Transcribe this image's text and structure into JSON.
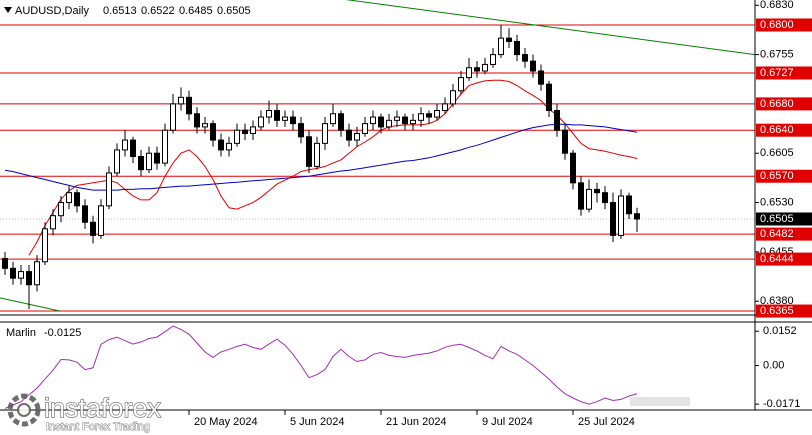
{
  "chart_data": {
    "type": "candlestick",
    "symbol": "AUDUSD,Daily",
    "ohlc": [
      [
        0.6445,
        0.6455,
        0.642,
        0.643
      ],
      [
        0.643,
        0.644,
        0.6405,
        0.6415
      ],
      [
        0.6415,
        0.6435,
        0.6405,
        0.6425
      ],
      [
        0.6425,
        0.6435,
        0.6368,
        0.6405
      ],
      [
        0.6405,
        0.645,
        0.6395,
        0.644
      ],
      [
        0.644,
        0.65,
        0.6435,
        0.649
      ],
      [
        0.649,
        0.652,
        0.648,
        0.651
      ],
      [
        0.651,
        0.654,
        0.65,
        0.653
      ],
      [
        0.653,
        0.6555,
        0.652,
        0.6545
      ],
      [
        0.6545,
        0.655,
        0.6515,
        0.6525
      ],
      [
        0.6525,
        0.6535,
        0.649,
        0.65
      ],
      [
        0.65,
        0.651,
        0.6468,
        0.648
      ],
      [
        0.648,
        0.6535,
        0.6475,
        0.6525
      ],
      [
        0.6525,
        0.6585,
        0.652,
        0.6575
      ],
      [
        0.6575,
        0.662,
        0.657,
        0.661
      ],
      [
        0.661,
        0.664,
        0.66,
        0.6625
      ],
      [
        0.6625,
        0.663,
        0.659,
        0.66
      ],
      [
        0.66,
        0.661,
        0.657,
        0.658
      ],
      [
        0.658,
        0.6615,
        0.6575,
        0.6605
      ],
      [
        0.6605,
        0.6615,
        0.658,
        0.659
      ],
      [
        0.659,
        0.665,
        0.6585,
        0.664
      ],
      [
        0.664,
        0.6695,
        0.6635,
        0.668
      ],
      [
        0.668,
        0.6705,
        0.667,
        0.669
      ],
      [
        0.669,
        0.67,
        0.6655,
        0.6665
      ],
      [
        0.6665,
        0.6675,
        0.6635,
        0.6645
      ],
      [
        0.6645,
        0.666,
        0.6635,
        0.665
      ],
      [
        0.665,
        0.6655,
        0.6615,
        0.6625
      ],
      [
        0.6625,
        0.6635,
        0.66,
        0.661
      ],
      [
        0.661,
        0.663,
        0.66,
        0.662
      ],
      [
        0.662,
        0.665,
        0.6615,
        0.664
      ],
      [
        0.664,
        0.665,
        0.6625,
        0.6635
      ],
      [
        0.6635,
        0.6655,
        0.6625,
        0.6645
      ],
      [
        0.6645,
        0.667,
        0.664,
        0.666
      ],
      [
        0.666,
        0.6685,
        0.665,
        0.667
      ],
      [
        0.667,
        0.668,
        0.6645,
        0.6655
      ],
      [
        0.6655,
        0.667,
        0.6645,
        0.666
      ],
      [
        0.666,
        0.667,
        0.664,
        0.665
      ],
      [
        0.665,
        0.666,
        0.662,
        0.663
      ],
      [
        0.663,
        0.664,
        0.6575,
        0.6585
      ],
      [
        0.6585,
        0.663,
        0.658,
        0.662
      ],
      [
        0.662,
        0.666,
        0.661,
        0.665
      ],
      [
        0.665,
        0.668,
        0.6645,
        0.6665
      ],
      [
        0.6665,
        0.667,
        0.663,
        0.664
      ],
      [
        0.664,
        0.665,
        0.6615,
        0.6625
      ],
      [
        0.6625,
        0.6645,
        0.6615,
        0.6635
      ],
      [
        0.6635,
        0.666,
        0.663,
        0.665
      ],
      [
        0.665,
        0.667,
        0.664,
        0.666
      ],
      [
        0.666,
        0.6665,
        0.6635,
        0.6645
      ],
      [
        0.6645,
        0.6665,
        0.664,
        0.6655
      ],
      [
        0.6655,
        0.667,
        0.6645,
        0.666
      ],
      [
        0.666,
        0.6665,
        0.664,
        0.665
      ],
      [
        0.665,
        0.6665,
        0.664,
        0.6655
      ],
      [
        0.6655,
        0.6675,
        0.6645,
        0.6665
      ],
      [
        0.6665,
        0.667,
        0.665,
        0.666
      ],
      [
        0.666,
        0.668,
        0.6655,
        0.667
      ],
      [
        0.667,
        0.669,
        0.6665,
        0.668
      ],
      [
        0.668,
        0.671,
        0.6675,
        0.67
      ],
      [
        0.67,
        0.673,
        0.6695,
        0.672
      ],
      [
        0.672,
        0.675,
        0.6715,
        0.6735
      ],
      [
        0.6735,
        0.6745,
        0.672,
        0.673
      ],
      [
        0.673,
        0.675,
        0.6725,
        0.674
      ],
      [
        0.674,
        0.6765,
        0.6735,
        0.6755
      ],
      [
        0.6755,
        0.68,
        0.675,
        0.678
      ],
      [
        0.678,
        0.6795,
        0.6765,
        0.6775
      ],
      [
        0.6775,
        0.6785,
        0.6745,
        0.6755
      ],
      [
        0.6755,
        0.6765,
        0.6735,
        0.6745
      ],
      [
        0.6745,
        0.6755,
        0.672,
        0.673
      ],
      [
        0.673,
        0.674,
        0.67,
        0.671
      ],
      [
        0.671,
        0.6715,
        0.666,
        0.667
      ],
      [
        0.667,
        0.668,
        0.663,
        0.664
      ],
      [
        0.664,
        0.665,
        0.6595,
        0.6605
      ],
      [
        0.6605,
        0.661,
        0.655,
        0.656
      ],
      [
        0.656,
        0.657,
        0.651,
        0.652
      ],
      [
        0.652,
        0.6565,
        0.6515,
        0.655
      ],
      [
        0.655,
        0.656,
        0.653,
        0.6545
      ],
      [
        0.6545,
        0.6555,
        0.652,
        0.653
      ],
      [
        0.653,
        0.6545,
        0.647,
        0.648
      ],
      [
        0.648,
        0.655,
        0.6475,
        0.654
      ],
      [
        0.654,
        0.6545,
        0.6505,
        0.6513
      ],
      [
        0.6513,
        0.6522,
        0.6485,
        0.6505
      ]
    ],
    "xlim": [
      -0.625,
      93.75
    ],
    "ylim": [
      0.6359,
      0.6838
    ],
    "yticks": [
      {
        "value": 0.683,
        "label": "0.6830"
      },
      0.6755,
      0.6605,
      {
        "value": 0.653,
        "label": "0.6530"
      },
      0.6455,
      {
        "value": 0.638,
        "label": "0.6380"
      }
    ],
    "xticks": [
      {
        "value": 23,
        "label": "20 May 2024"
      },
      {
        "value": 35,
        "label": "5 Jun 2024"
      },
      {
        "value": 47,
        "label": "21 Jun 2024"
      },
      {
        "value": 59,
        "label": "9 Jul 2024"
      },
      {
        "value": 71,
        "label": "25 Jul 2024"
      }
    ],
    "levels": {
      "color": "#e00000",
      "values": [
        {
          "value": 0.68,
          "label": "0.6800"
        },
        0.6727,
        {
          "value": 0.668,
          "label": "0.6680"
        },
        {
          "value": 0.664,
          "label": "0.6640"
        },
        {
          "value": 0.657,
          "label": "0.6570"
        },
        0.6482,
        0.6444,
        0.6365
      ]
    },
    "moving_averages": [
      {
        "color": "#e00000",
        "values": [
          null,
          null,
          null,
          0.645,
          0.647,
          0.6495,
          0.6515,
          0.6535,
          0.6548,
          0.6556,
          0.6558,
          0.656,
          0.6562,
          0.6564,
          0.656,
          0.655,
          0.654,
          0.6534,
          0.6534,
          0.6545,
          0.657,
          0.659,
          0.6605,
          0.661,
          0.66,
          0.6585,
          0.6565,
          0.654,
          0.6522,
          0.652,
          0.6525,
          0.653,
          0.6538,
          0.6548,
          0.6558,
          0.6564,
          0.657,
          0.6577,
          0.658,
          0.6582,
          0.6585,
          0.659,
          0.6595,
          0.6605,
          0.6615,
          0.6622,
          0.663,
          0.664,
          0.6645,
          0.6647,
          0.6648,
          0.6648,
          0.6648,
          0.665,
          0.6655,
          0.6665,
          0.668,
          0.6695,
          0.6708,
          0.6712,
          0.6715,
          0.6716,
          0.6716,
          0.6714,
          0.6708,
          0.67,
          0.6693,
          0.6685,
          0.6672,
          0.6663,
          0.665,
          0.6635,
          0.662,
          0.6612,
          0.661,
          0.6608,
          0.6605,
          0.6602,
          0.66,
          0.6597
        ]
      },
      {
        "color": "#0000c8",
        "values": [
          0.6579,
          0.6577,
          0.6574,
          0.6571,
          0.6568,
          0.6565,
          0.6562,
          0.6559,
          0.6556,
          0.6553,
          0.6551,
          0.6549,
          0.6549,
          0.6549,
          0.6549,
          0.655,
          0.655,
          0.6551,
          0.6551,
          0.6552,
          0.6553,
          0.6554,
          0.6555,
          0.6555,
          0.6556,
          0.6557,
          0.6558,
          0.6559,
          0.656,
          0.6561,
          0.6562,
          0.6563,
          0.6564,
          0.6565,
          0.6566,
          0.6567,
          0.6568,
          0.6569,
          0.657,
          0.6572,
          0.6574,
          0.6576,
          0.6578,
          0.6579,
          0.6581,
          0.6583,
          0.6585,
          0.6587,
          0.6589,
          0.6591,
          0.6593,
          0.6594,
          0.6596,
          0.6598,
          0.6601,
          0.6604,
          0.6607,
          0.661,
          0.6614,
          0.6617,
          0.6621,
          0.6625,
          0.6629,
          0.6633,
          0.6637,
          0.6641,
          0.6644,
          0.6646,
          0.6648,
          0.6649,
          0.6649,
          0.6648,
          0.6648,
          0.6647,
          0.6646,
          0.6645,
          0.6643,
          0.6641,
          0.6639,
          0.6637
        ]
      }
    ],
    "trendlines": [
      {
        "color": "#008000",
        "x": [
          40.6,
          93.75
        ],
        "values": [
          0.6842,
          0.6755
        ]
      },
      {
        "color": "#008000",
        "x": [
          -0.625,
          6.9
        ],
        "values": [
          0.6385,
          0.6365
        ]
      }
    ],
    "indicator": {
      "name": "Marlin",
      "color": "#a030b0",
      "values": [
        -0.019,
        -0.0175,
        -0.016,
        -0.013,
        -0.01,
        -0.006,
        -0.002,
        0.0027,
        0.0025,
        0.0015,
        -0.0018,
        -0.001,
        0.0094,
        0.0115,
        0.0126,
        0.011,
        0.0095,
        0.0105,
        0.012,
        0.0126,
        0.015,
        0.0175,
        0.016,
        0.0139,
        0.01,
        0.006,
        0.0036,
        0.006,
        0.0072,
        0.0085,
        0.0094,
        0.008,
        0.0072,
        0.0095,
        0.0117,
        0.009,
        0.005,
        0.0,
        -0.0054,
        -0.004,
        -0.0018,
        0.004,
        0.0072,
        0.004,
        0.0018,
        0.0025,
        0.005,
        0.0058,
        0.0045,
        0.004,
        0.0036,
        0.0045,
        0.005,
        0.0055,
        0.0065,
        0.0081,
        0.009,
        0.0094,
        0.008,
        0.0065,
        0.0045,
        0.003,
        0.0085,
        0.0065,
        0.005,
        0.0025,
        0.0,
        -0.003,
        -0.006,
        -0.0095,
        -0.0125,
        -0.0144,
        -0.016,
        -0.0171,
        -0.016,
        -0.0144,
        -0.0155,
        -0.015,
        -0.0135,
        -0.0125
      ],
      "ylim": [
        -0.0197,
        0.0193
      ],
      "yticks": [
        0.0152,
        {
          "value": 0,
          "label": "0.00"
        },
        -0.0171
      ]
    }
  },
  "watermark": {
    "brand": "instaforex",
    "tagline": "Instant Forex Trading"
  }
}
